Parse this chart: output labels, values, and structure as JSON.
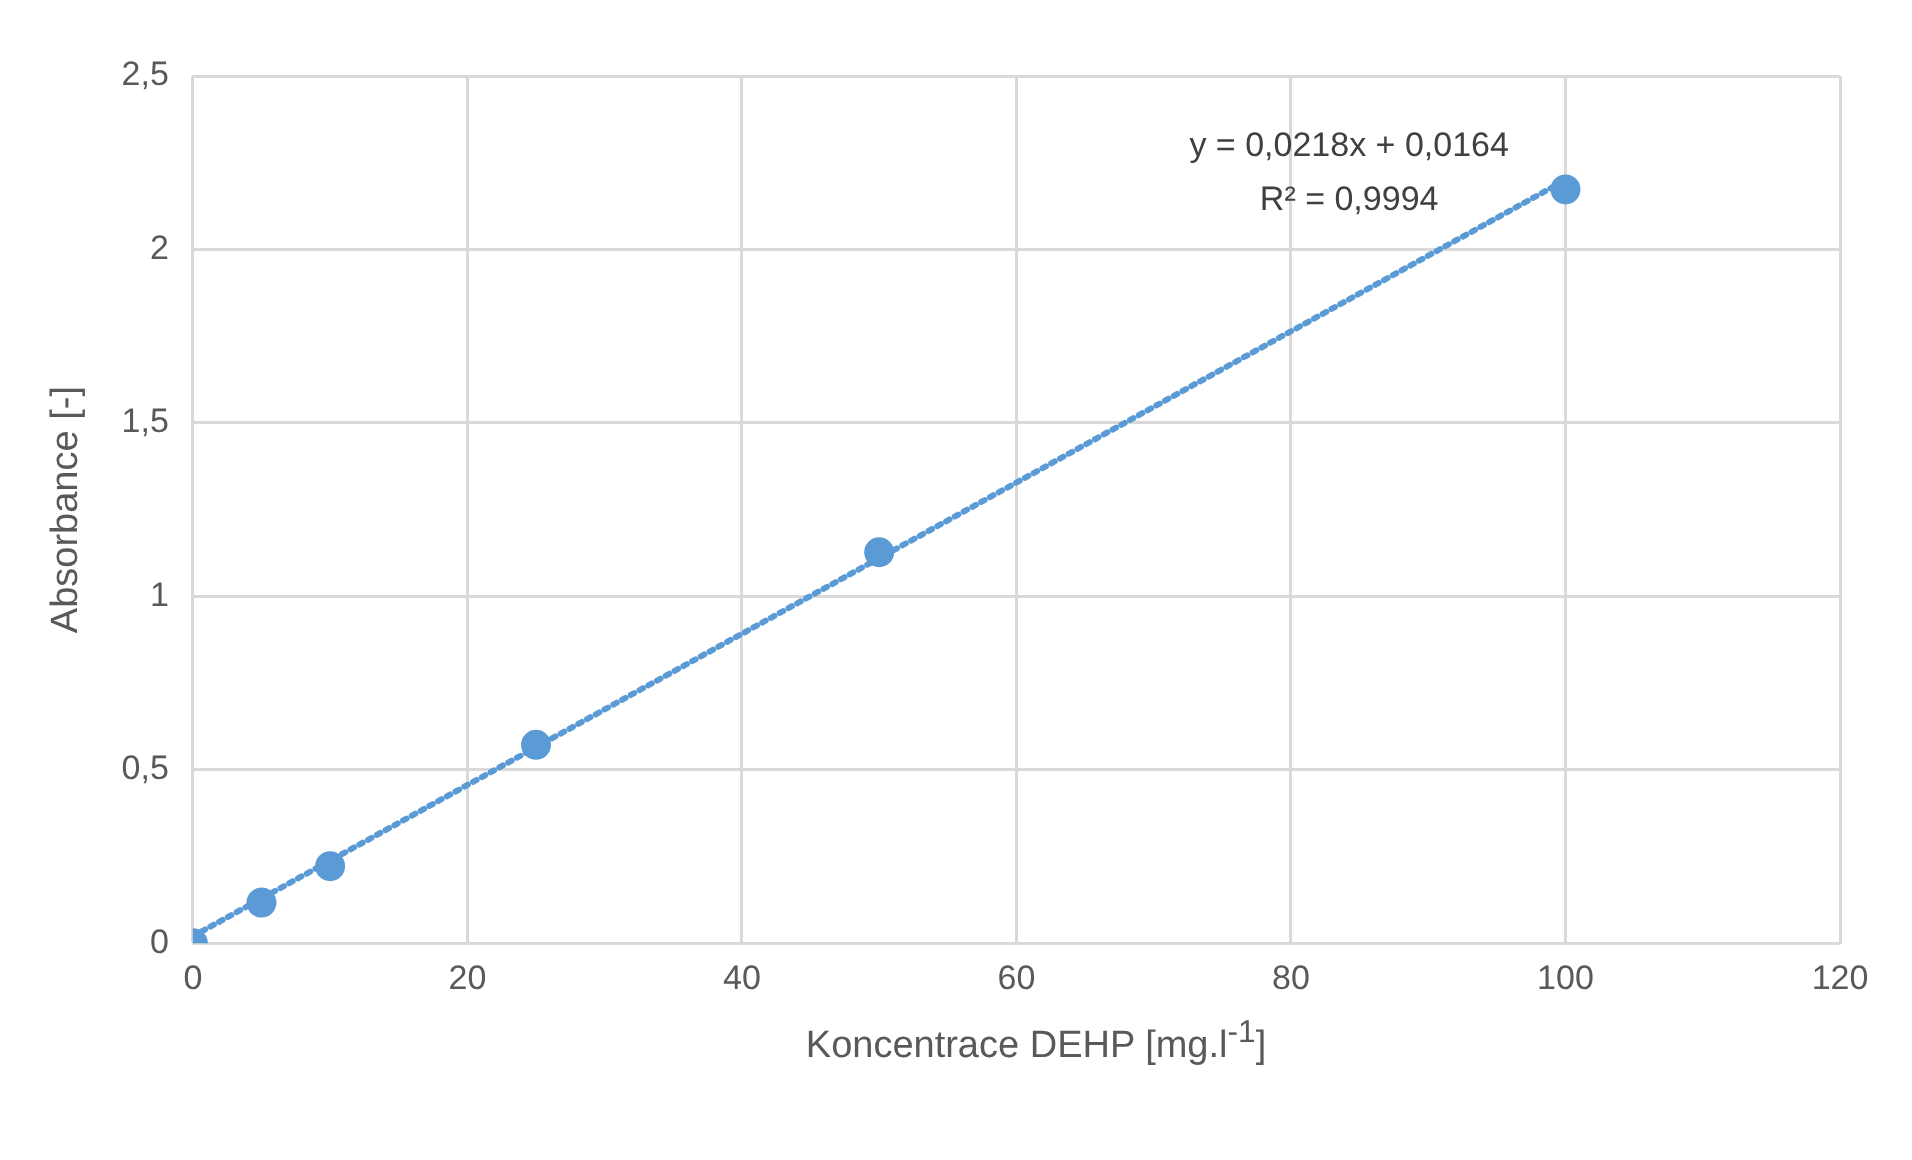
{
  "chart_data": {
    "type": "scatter",
    "xlabel": "Koncentrace DEHP [mg.l$^{-1}$]",
    "ylabel": "Absorbance [-]",
    "annotations": [
      "y = 0,0218x + 0,0164",
      "R² = 0,9994"
    ],
    "series": [
      {
        "type": "scatter",
        "color": "#5b9bd5",
        "x": [
          0,
          5,
          10,
          25,
          50,
          100
        ],
        "values": [
          0,
          0.117,
          0.222,
          0.572,
          1.127,
          2.173
        ],
        "marker": "circle"
      },
      {
        "type": "line",
        "color": "#5b9bd5",
        "x": [
          0,
          100
        ],
        "values": [
          0.02,
          2.2
        ],
        "marker": "none",
        "line_style": "dotted"
      }
    ],
    "xlim": [
      0,
      120
    ],
    "xticks": [
      0,
      20,
      40,
      60,
      80,
      100,
      120
    ],
    "ylim": [
      0,
      2.5
    ],
    "yticks": [
      0,
      {
        "value": 0.5,
        "label": "0,5"
      },
      1,
      {
        "value": 1.5,
        "label": "1,5"
      },
      2,
      {
        "value": 2.5,
        "label": "2,5"
      }
    ],
    "grid": true,
    "legend": false
  }
}
